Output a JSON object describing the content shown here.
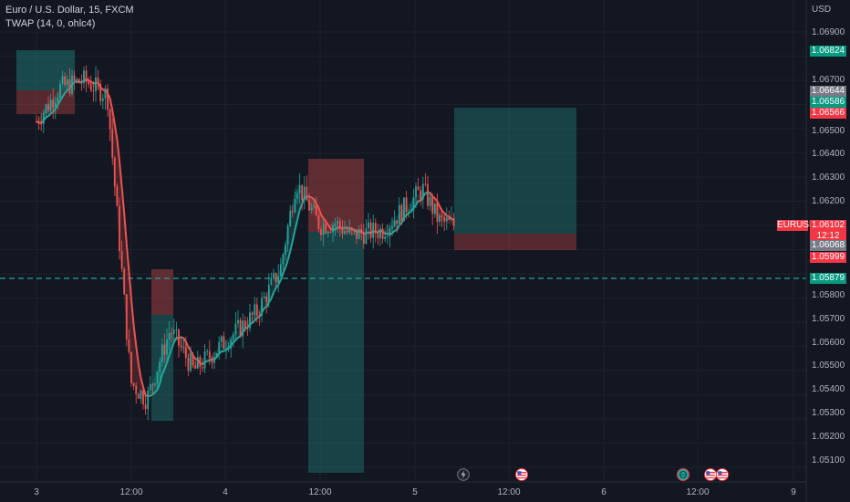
{
  "header": {
    "title": "Euro / U.S. Dollar, 15, FXCM",
    "indicator": "TWAP (14, 0, ohlc4)"
  },
  "price_axis": {
    "currency": "USD",
    "ticks": [
      "1.06900",
      "1.06800",
      "1.06700",
      "1.06600",
      "1.06500",
      "1.06400",
      "1.06300",
      "1.06200",
      "1.06100",
      "1.06000",
      "1.05900",
      "1.05800",
      "1.05700",
      "1.05600",
      "1.05500",
      "1.05400",
      "1.05300",
      "1.05200",
      "1.05100"
    ]
  },
  "price_tags": {
    "t1": "1.06824",
    "t2": "1.06644",
    "t3": "1.06586",
    "t4": "1.06566",
    "symbol": "EURUSD",
    "last": "1.06102",
    "countdown": "12:12",
    "t5": "1.06068",
    "t6": "1.05999",
    "hline": "1.05879"
  },
  "time_axis": {
    "labels": [
      "3",
      "12:00",
      "4",
      "12:00",
      "5",
      "12:00",
      "6",
      "12:00",
      "9"
    ]
  },
  "events": [
    "lightning-icon",
    "us-flag-icon",
    "globe-icon",
    "us-flag-icon",
    "us-flag-icon"
  ],
  "colors": {
    "background": "#131722",
    "bull": "#26a69a",
    "bear": "#ef5350",
    "twap_up": "#26a69a",
    "twap_down": "#ef5350",
    "hline": "#26a69a"
  },
  "chart_data": {
    "type": "candlestick",
    "symbol": "EURUSD",
    "timeframe": "15",
    "ylim": [
      1.0505,
      1.0695
    ],
    "horizontal_line": 1.05879,
    "last_price": 1.06102,
    "close_path": [
      [
        "3 00:00",
        1.0653
      ],
      [
        "3 03:00",
        1.0667
      ],
      [
        "3 06:00",
        1.067
      ],
      [
        "3 09:00",
        1.0664
      ],
      [
        "3 12:00",
        1.0545
      ],
      [
        "3 14:00",
        1.0538
      ],
      [
        "3 17:00",
        1.0567
      ],
      [
        "3 20:00",
        1.055
      ],
      [
        "4 00:00",
        1.0562
      ],
      [
        "4 04:00",
        1.0574
      ],
      [
        "4 07:00",
        1.0592
      ],
      [
        "4 09:00",
        1.0628
      ],
      [
        "4 12:00",
        1.061
      ],
      [
        "4 14:00",
        1.0611
      ],
      [
        "4 16:00",
        1.0606
      ],
      [
        "4 20:00",
        1.0608
      ],
      [
        "5 01:00",
        1.0625
      ],
      [
        "5 03:00",
        1.0612
      ],
      [
        "5 05:00",
        1.061
      ]
    ]
  }
}
